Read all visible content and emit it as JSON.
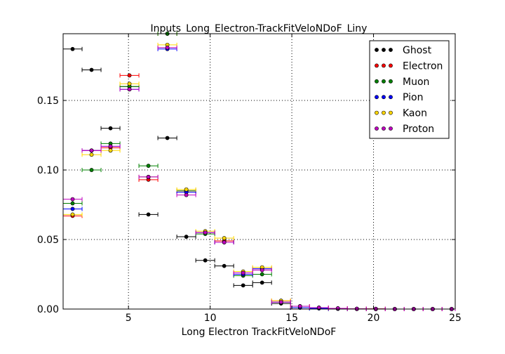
{
  "chart_data": {
    "type": "scatter",
    "title": "Inputs_Long_Electron-TrackFitVeloNDoF_Liny",
    "xlabel": "Long Electron TrackFitVeloNDoF",
    "ylabel": "",
    "xlim": [
      1,
      25
    ],
    "ylim": [
      0,
      0.198
    ],
    "x_ticks": [
      "5",
      "10",
      "15",
      "20",
      "25"
    ],
    "y_ticks": [
      "0.00",
      "0.05",
      "0.10",
      "0.15"
    ],
    "grid": true,
    "legend_position": "top-right",
    "x_error_half_width": 0.58,
    "series": [
      {
        "name": "Ghost",
        "color": "#000000",
        "x": [
          1.58,
          2.74,
          3.9,
          5.06,
          6.22,
          7.38,
          8.54,
          9.7,
          10.86,
          12.02,
          13.18,
          14.34,
          15.5,
          16.66,
          17.82,
          18.98,
          20.14,
          21.3,
          22.46,
          23.62,
          24.78
        ],
        "y": [
          0.187,
          0.172,
          0.13,
          0.16,
          0.068,
          0.123,
          0.052,
          0.035,
          0.031,
          0.017,
          0.019,
          0.004,
          0.001,
          0.0005,
          0.0002,
          0.0001,
          0.0001,
          0,
          0,
          0,
          0
        ]
      },
      {
        "name": "Electron",
        "color": "#ff0000",
        "x": [
          1.58,
          2.74,
          3.9,
          5.06,
          6.22,
          7.38,
          8.54,
          9.7,
          10.86,
          12.02,
          13.18,
          14.34,
          15.5,
          16.66,
          17.82,
          18.98,
          20.14,
          21.3,
          22.46,
          23.62,
          24.78
        ],
        "y": [
          0.067,
          0.114,
          0.116,
          0.168,
          0.093,
          0.198,
          0.085,
          0.055,
          0.049,
          0.026,
          0.029,
          0.006,
          0.002,
          0.001,
          0.0005,
          0.0002,
          0.0001,
          0,
          0,
          0,
          0
        ]
      },
      {
        "name": "Muon",
        "color": "#008000",
        "x": [
          1.58,
          2.74,
          3.9,
          5.06,
          6.22,
          7.38,
          8.54,
          9.7,
          10.86,
          12.02,
          13.18,
          14.34,
          15.5,
          16.66,
          17.82,
          18.98,
          20.14,
          21.3,
          22.46,
          23.62,
          24.78
        ],
        "y": [
          0.076,
          0.1,
          0.119,
          0.16,
          0.103,
          0.198,
          0.085,
          0.054,
          0.048,
          0.024,
          0.025,
          0.005,
          0.001,
          0.0005,
          0.0002,
          0.0001,
          0,
          0,
          0,
          0,
          0
        ]
      },
      {
        "name": "Pion",
        "color": "#0000ff",
        "x": [
          1.58,
          2.74,
          3.9,
          5.06,
          6.22,
          7.38,
          8.54,
          9.7,
          10.86,
          12.02,
          13.18,
          14.34,
          15.5,
          16.66,
          17.82,
          18.98,
          20.14,
          21.3,
          22.46,
          23.62,
          24.78
        ],
        "y": [
          0.072,
          0.114,
          0.117,
          0.158,
          0.095,
          0.187,
          0.084,
          0.055,
          0.048,
          0.025,
          0.029,
          0.005,
          0.001,
          0.0005,
          0.0002,
          0.0001,
          0,
          0,
          0,
          0,
          0
        ]
      },
      {
        "name": "Kaon",
        "color": "#ffd700",
        "x": [
          1.58,
          2.74,
          3.9,
          5.06,
          6.22,
          7.38,
          8.54,
          9.7,
          10.86,
          12.02,
          13.18,
          14.34,
          15.5,
          16.66,
          17.82,
          18.98,
          20.14,
          21.3,
          22.46,
          23.62,
          24.78
        ],
        "y": [
          0.068,
          0.111,
          0.114,
          0.162,
          0.095,
          0.19,
          0.086,
          0.056,
          0.051,
          0.027,
          0.03,
          0.006,
          0.002,
          0.001,
          0.0005,
          0.0002,
          0.0001,
          0,
          0,
          0,
          0
        ]
      },
      {
        "name": "Proton",
        "color": "#bf00bf",
        "x": [
          1.58,
          2.74,
          3.9,
          5.06,
          6.22,
          7.38,
          8.54,
          9.7,
          10.86,
          12.02,
          13.18,
          14.34,
          15.5,
          16.66,
          17.82,
          18.98,
          20.14,
          21.3,
          22.46,
          23.62,
          24.78
        ],
        "y": [
          0.079,
          0.114,
          0.117,
          0.158,
          0.095,
          0.188,
          0.082,
          0.055,
          0.048,
          0.026,
          0.028,
          0.005,
          0.002,
          0.001,
          0.0005,
          0.0002,
          0.0001,
          0,
          0,
          0,
          0
        ]
      }
    ]
  }
}
